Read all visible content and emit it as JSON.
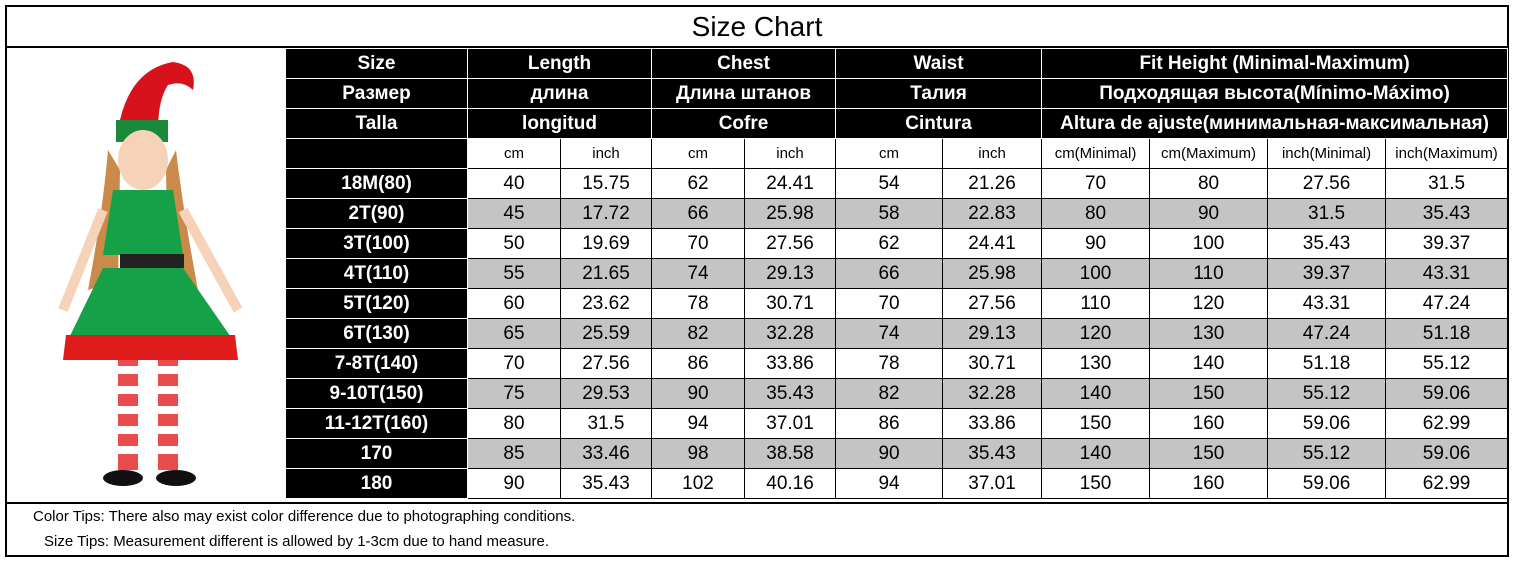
{
  "title": "Size Chart",
  "table": {
    "header_rows": [
      [
        "Size",
        "Length",
        "Chest",
        "Waist",
        "Fit Height (Minimal-Maximum)"
      ],
      [
        "Размер",
        "длина",
        "Длина штанов",
        "Талия",
        "Подходящая высота(Mínimo-Máximo)"
      ],
      [
        "Talla",
        "longitud",
        "Cofre",
        "Cintura",
        "Altura de ajuste(минимальная-максимальная)"
      ]
    ],
    "units": [
      "cm",
      "inch",
      "cm",
      "inch",
      "cm",
      "inch",
      "cm(Minimal)",
      "cm(Maximum)",
      "inch(Minimal)",
      "inch(Maximum)"
    ],
    "rows": [
      [
        "18M(80)",
        "40",
        "15.75",
        "62",
        "24.41",
        "54",
        "21.26",
        "70",
        "80",
        "27.56",
        "31.5"
      ],
      [
        "2T(90)",
        "45",
        "17.72",
        "66",
        "25.98",
        "58",
        "22.83",
        "80",
        "90",
        "31.5",
        "35.43"
      ],
      [
        "3T(100)",
        "50",
        "19.69",
        "70",
        "27.56",
        "62",
        "24.41",
        "90",
        "100",
        "35.43",
        "39.37"
      ],
      [
        "4T(110)",
        "55",
        "21.65",
        "74",
        "29.13",
        "66",
        "25.98",
        "100",
        "110",
        "39.37",
        "43.31"
      ],
      [
        "5T(120)",
        "60",
        "23.62",
        "78",
        "30.71",
        "70",
        "27.56",
        "110",
        "120",
        "43.31",
        "47.24"
      ],
      [
        "6T(130)",
        "65",
        "25.59",
        "82",
        "32.28",
        "74",
        "29.13",
        "120",
        "130",
        "47.24",
        "51.18"
      ],
      [
        "7-8T(140)",
        "70",
        "27.56",
        "86",
        "33.86",
        "78",
        "30.71",
        "130",
        "140",
        "51.18",
        "55.12"
      ],
      [
        "9-10T(150)",
        "75",
        "29.53",
        "90",
        "35.43",
        "82",
        "32.28",
        "140",
        "150",
        "55.12",
        "59.06"
      ],
      [
        "11-12T(160)",
        "80",
        "31.5",
        "94",
        "37.01",
        "86",
        "33.86",
        "150",
        "160",
        "59.06",
        "62.99"
      ],
      [
        "170",
        "85",
        "33.46",
        "98",
        "38.58",
        "90",
        "35.43",
        "140",
        "150",
        "55.12",
        "59.06"
      ],
      [
        "180",
        "90",
        "35.43",
        "102",
        "40.16",
        "94",
        "37.01",
        "150",
        "160",
        "59.06",
        "62.99"
      ]
    ]
  },
  "notes": [
    "Color Tips: There also may exist color difference due to photographing conditions.",
    "Size Tips: Measurement different is allowed by 1-3cm due to hand measure."
  ]
}
